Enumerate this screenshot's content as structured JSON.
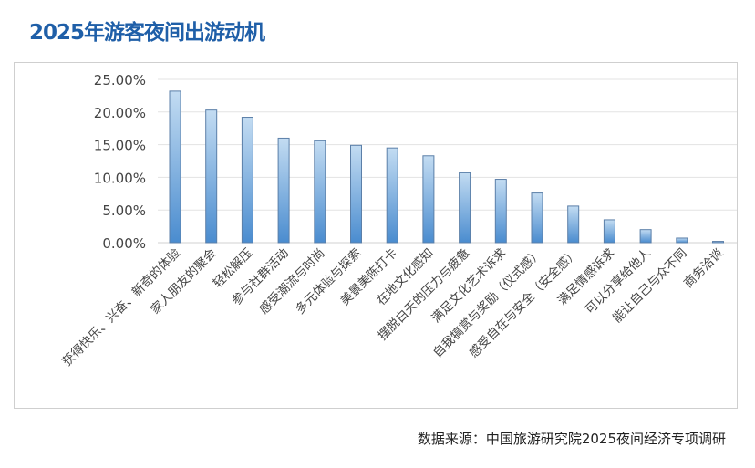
{
  "title": "2025年游客夜间出游动机",
  "source": "数据来源：中国旅游研究院2025夜间经济专项调研",
  "colors": {
    "title": "#1f5fa8",
    "bar_top": "#c3dcf2",
    "bar_bottom": "#4a8ccf",
    "bar_stroke": "#5b7fa8",
    "grid": "#e3e3e3"
  },
  "chart_data": {
    "type": "bar",
    "title": "2025年游客夜间出游动机",
    "xlabel": "",
    "ylabel": "",
    "ylim": [
      0,
      25
    ],
    "yticks": [
      "0.00%",
      "5.00%",
      "10.00%",
      "15.00%",
      "20.00%",
      "25.00%"
    ],
    "grid": true,
    "legend": "none",
    "categories": [
      "获得快乐、兴奋、新奇的体验",
      "家人朋友的聚会",
      "轻松解压",
      "参与社群活动",
      "感受潮流与时尚",
      "多元体验与探索",
      "美景美陈打卡",
      "在地文化感知",
      "摆脱白天的压力与疲惫",
      "满足文化艺术诉求",
      "自我犒赏与奖励（仪式感）",
      "感受自在与安全（安全感）",
      "满足情感诉求",
      "可以分享给他人",
      "能让自己与众不同",
      "商务洽谈"
    ],
    "values": [
      23.2,
      20.3,
      19.2,
      16.0,
      15.6,
      14.9,
      14.5,
      13.3,
      10.7,
      9.7,
      7.6,
      5.6,
      3.5,
      2.0,
      0.7,
      0.2
    ]
  }
}
